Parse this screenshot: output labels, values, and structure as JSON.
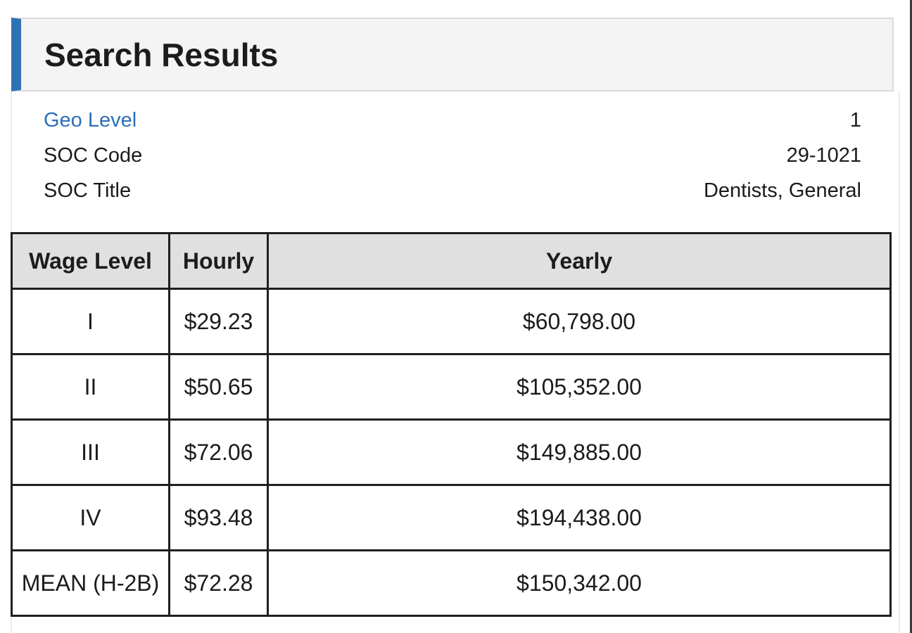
{
  "header": {
    "title": "Search Results"
  },
  "summary": {
    "rows": [
      {
        "label": "Geo Level",
        "value": "1"
      },
      {
        "label": "SOC Code",
        "value": "29-1021"
      },
      {
        "label": "SOC Title",
        "value": "Dentists, General"
      }
    ]
  },
  "wage_table": {
    "columns": [
      "Wage Level",
      "Hourly",
      "Yearly"
    ],
    "rows": [
      [
        "I",
        "$29.23",
        "$60,798.00"
      ],
      [
        "II",
        "$50.65",
        "$105,352.00"
      ],
      [
        "III",
        "$72.06",
        "$149,885.00"
      ],
      [
        "IV",
        "$93.48",
        "$194,438.00"
      ],
      [
        "MEAN (H-2B)",
        "$72.28",
        "$150,342.00"
      ]
    ]
  },
  "colors": {
    "accent_blue": "#2e73b6",
    "link_blue": "#2b6fb7",
    "header_card_bg": "#f4f4f4",
    "table_header_bg": "#e0e0e0",
    "table_border": "#1f1f1f",
    "text": "#1b1b1b"
  }
}
